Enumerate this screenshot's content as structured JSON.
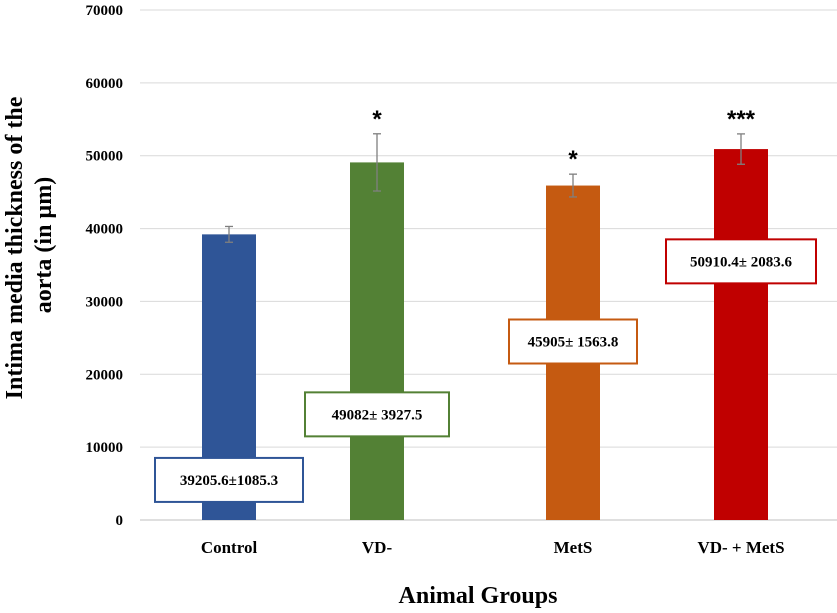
{
  "chart_data": {
    "type": "bar",
    "title": "",
    "xlabel": "Animal Groups",
    "ylabel_lines": [
      "Intima media thickness  of the",
      "aorta (in µm)"
    ],
    "ylim": [
      0,
      70000
    ],
    "yticks": [
      0,
      10000,
      20000,
      30000,
      40000,
      50000,
      60000,
      70000
    ],
    "grid": true,
    "categories": [
      "Control",
      "VD-",
      "MetS",
      "VD- + MetS"
    ],
    "values": [
      39205.6,
      49082,
      45905,
      50910.4
    ],
    "errors": [
      1085.3,
      3927.5,
      1563.8,
      2083.6
    ],
    "colors": [
      "#2f5597",
      "#538135",
      "#c55a11",
      "#c00000"
    ],
    "significance": [
      "",
      "*",
      "*",
      "***"
    ],
    "data_labels": [
      "39205.6±1085.3",
      "49082± 3927.5",
      "45905± 1563.8",
      "50910.4± 2083.6"
    ],
    "label_positions_value": [
      5500,
      14500,
      24500,
      35500
    ]
  }
}
